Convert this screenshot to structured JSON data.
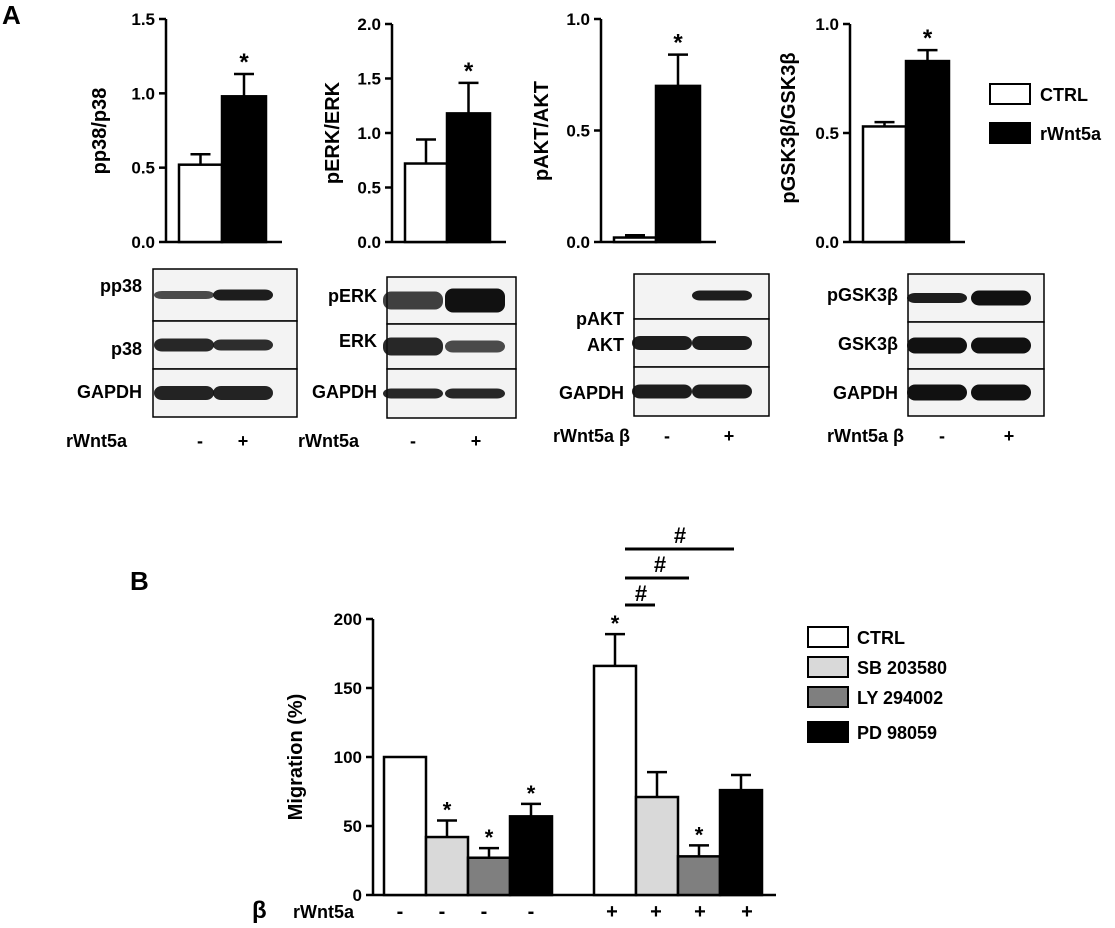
{
  "panel_labels": {
    "a": "A",
    "b": "B"
  },
  "legend_a": [
    {
      "label": "CTRL",
      "color": "#ffffff"
    },
    {
      "label": "rWnt5a",
      "color": "#000000"
    }
  ],
  "legend_b": [
    {
      "label": "CTRL",
      "color": "#ffffff"
    },
    {
      "label": "SB 203580",
      "color": "#d9d9d9"
    },
    {
      "label": "LY 294002",
      "color": "#7f7f7f"
    },
    {
      "label": "PD 98059",
      "color": "#000000"
    }
  ],
  "significance": {
    "star": "*",
    "hash": "#"
  },
  "blots": [
    {
      "rows": [
        "pp38",
        "p38",
        "GAPDH"
      ],
      "treatment_label": "rWnt5a",
      "signs": [
        "-",
        "+"
      ]
    },
    {
      "rows": [
        "pERK",
        "ERK",
        "GAPDH"
      ],
      "treatment_label": "rWnt5a",
      "signs": [
        "-",
        "+"
      ]
    },
    {
      "rows": [
        "pAKT",
        "AKT",
        "GAPDH"
      ],
      "treatment_label": "rWnt5a β",
      "signs": [
        "-",
        "+"
      ]
    },
    {
      "rows": [
        "pGSK3β",
        "GSK3β",
        "GAPDH"
      ],
      "treatment_label": "rWnt5a β",
      "signs": [
        "-",
        "+"
      ]
    }
  ],
  "panel_b_treatment": {
    "prefix": "β",
    "label": "rWnt5a",
    "signs": [
      "-",
      "-",
      "-",
      "-",
      "+",
      "+",
      "+",
      "+"
    ]
  },
  "chart_data": [
    {
      "type": "bar",
      "ylabel": "pp38/p38",
      "ylim": [
        0,
        1.5
      ],
      "yticks": [
        "0.0",
        "0.5",
        "1.0",
        "1.5"
      ],
      "series": [
        {
          "name": "CTRL",
          "values": [
            0.52
          ]
        },
        {
          "name": "rWnt5a",
          "values": [
            0.98
          ]
        }
      ],
      "errors": [
        0.07,
        0.15
      ],
      "stars": [
        false,
        true
      ]
    },
    {
      "type": "bar",
      "ylabel": "pERK/ERK",
      "ylim": [
        0,
        2.0
      ],
      "yticks": [
        "0.0",
        "0.5",
        "1.0",
        "1.5",
        "2.0"
      ],
      "series": [
        {
          "name": "CTRL",
          "values": [
            0.72
          ]
        },
        {
          "name": "rWnt5a",
          "values": [
            1.18
          ]
        }
      ],
      "errors": [
        0.22,
        0.28
      ],
      "stars": [
        false,
        true
      ]
    },
    {
      "type": "bar",
      "ylabel": "pAKT/AKT",
      "ylim": [
        0,
        1.0
      ],
      "yticks": [
        "0.0",
        "0.5",
        "1.0"
      ],
      "series": [
        {
          "name": "CTRL",
          "values": [
            0.02
          ]
        },
        {
          "name": "rWnt5a",
          "values": [
            0.7
          ]
        }
      ],
      "errors": [
        0.01,
        0.14
      ],
      "stars": [
        false,
        true
      ]
    },
    {
      "type": "bar",
      "ylabel": "pGSK3β/GSK3β",
      "ylim": [
        0,
        1.0
      ],
      "yticks": [
        "0.0",
        "0.5",
        "1.0"
      ],
      "series": [
        {
          "name": "CTRL",
          "values": [
            0.53
          ]
        },
        {
          "name": "rWnt5a",
          "values": [
            0.83
          ]
        }
      ],
      "errors": [
        0.02,
        0.05
      ],
      "stars": [
        false,
        true
      ]
    },
    {
      "type": "bar",
      "ylabel": "Migration (%)",
      "ylim": [
        0,
        200
      ],
      "yticks": [
        "0",
        "50",
        "100",
        "150",
        "200"
      ],
      "series": [
        {
          "name": "CTRL",
          "values": [
            100,
            166
          ]
        },
        {
          "name": "SB 203580",
          "values": [
            42,
            71
          ]
        },
        {
          "name": "LY 294002",
          "values": [
            27,
            28
          ]
        },
        {
          "name": "PD 98059",
          "values": [
            57,
            76
          ]
        }
      ],
      "errors": [
        [
          0,
          23
        ],
        [
          12,
          18
        ],
        [
          7,
          8
        ],
        [
          9,
          11
        ]
      ],
      "stars": [
        [
          false,
          true
        ],
        [
          true,
          false
        ],
        [
          true,
          true
        ],
        [
          true,
          false
        ]
      ]
    }
  ]
}
